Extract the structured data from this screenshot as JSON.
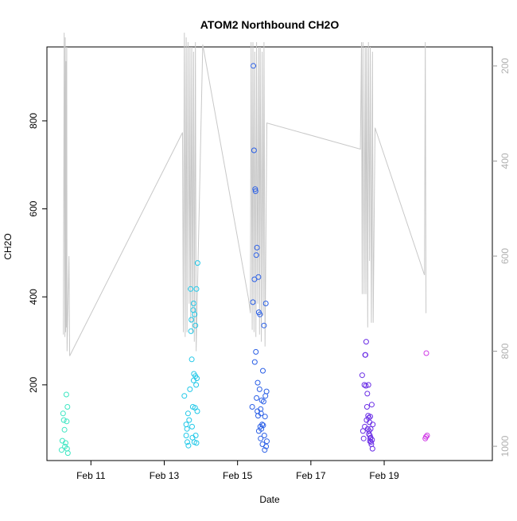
{
  "chart_data": {
    "type": "scatter",
    "title": "ATOM2 Northbound CH2O",
    "xlabel": "Date",
    "ylabel": "CH2O",
    "x_range": [
      9.8,
      21.95
    ],
    "y_range": [
      28,
      968
    ],
    "right_axis_range": [
      1030,
      160
    ],
    "x_ticks": [
      {
        "value": 11,
        "label": "Feb 11"
      },
      {
        "value": 13,
        "label": "Feb 13"
      },
      {
        "value": 15,
        "label": "Feb 15"
      },
      {
        "value": 17,
        "label": "Feb 17"
      },
      {
        "value": 19,
        "label": "Feb 19"
      }
    ],
    "y_ticks": [
      {
        "value": 200,
        "label": "200"
      },
      {
        "value": 400,
        "label": "400"
      },
      {
        "value": 600,
        "label": "600"
      },
      {
        "value": 800,
        "label": "800"
      }
    ],
    "right_ticks": [
      {
        "value": 200,
        "label": "200"
      },
      {
        "value": 400,
        "label": "400"
      },
      {
        "value": 600,
        "label": "600"
      },
      {
        "value": 800,
        "label": "800"
      },
      {
        "value": 1000,
        "label": "1000"
      }
    ],
    "grid": false,
    "legend": "none",
    "series": [
      {
        "color": "#3de6c2",
        "points": [
          [
            10.2,
            52
          ],
          [
            10.22,
            73
          ],
          [
            10.24,
            135
          ],
          [
            10.26,
            120
          ],
          [
            10.28,
            98
          ],
          [
            10.29,
            60
          ],
          [
            10.31,
            68
          ],
          [
            10.33,
            178
          ],
          [
            10.34,
            117
          ],
          [
            10.36,
            150
          ],
          [
            10.37,
            45
          ],
          [
            10.35,
            55
          ]
        ]
      },
      {
        "color": "#21c8e8",
        "points": [
          [
            13.55,
            175
          ],
          [
            13.6,
            110
          ],
          [
            13.6,
            85
          ],
          [
            13.62,
            100
          ],
          [
            13.63,
            70
          ],
          [
            13.65,
            135
          ],
          [
            13.66,
            62
          ],
          [
            13.68,
            120
          ],
          [
            13.7,
            190
          ],
          [
            13.72,
            418
          ],
          [
            13.73,
            322
          ],
          [
            13.74,
            348
          ],
          [
            13.75,
            258
          ],
          [
            13.76,
            105
          ],
          [
            13.77,
            80
          ],
          [
            13.78,
            150
          ],
          [
            13.79,
            370
          ],
          [
            13.8,
            385
          ],
          [
            13.8,
            210
          ],
          [
            13.81,
            225
          ],
          [
            13.82,
            70
          ],
          [
            13.83,
            360
          ],
          [
            13.84,
            148
          ],
          [
            13.85,
            220
          ],
          [
            13.86,
            85
          ],
          [
            13.87,
            200
          ],
          [
            13.88,
            68
          ],
          [
            13.88,
            418
          ],
          [
            13.89,
            215
          ],
          [
            13.9,
            140
          ],
          [
            13.91,
            477
          ],
          [
            13.85,
            335
          ]
        ]
      },
      {
        "color": "#2a5fe6",
        "points": [
          [
            15.4,
            150
          ],
          [
            15.42,
            388
          ],
          [
            15.43,
            925
          ],
          [
            15.45,
            733
          ],
          [
            15.46,
            440
          ],
          [
            15.47,
            252
          ],
          [
            15.48,
            645
          ],
          [
            15.49,
            640
          ],
          [
            15.5,
            275
          ],
          [
            15.51,
            495
          ],
          [
            15.52,
            170
          ],
          [
            15.53,
            512
          ],
          [
            15.54,
            140
          ],
          [
            15.55,
            205
          ],
          [
            15.56,
            130
          ],
          [
            15.57,
            445
          ],
          [
            15.58,
            365
          ],
          [
            15.6,
            190
          ],
          [
            15.61,
            360
          ],
          [
            15.62,
            105
          ],
          [
            15.63,
            145
          ],
          [
            15.64,
            135
          ],
          [
            15.65,
            100
          ],
          [
            15.66,
            165
          ],
          [
            15.67,
            110
          ],
          [
            15.68,
            65
          ],
          [
            15.69,
            232
          ],
          [
            15.7,
            108
          ],
          [
            15.71,
            162
          ],
          [
            15.72,
            335
          ],
          [
            15.73,
            85
          ],
          [
            15.74,
            52
          ],
          [
            15.75,
            128
          ],
          [
            15.76,
            175
          ],
          [
            15.77,
            385
          ],
          [
            15.78,
            60
          ],
          [
            15.79,
            185
          ],
          [
            15.8,
            72
          ],
          [
            15.58,
            95
          ],
          [
            15.63,
            78
          ]
        ]
      },
      {
        "color": "#6a2de6",
        "points": [
          [
            18.4,
            222
          ],
          [
            18.42,
            95
          ],
          [
            18.44,
            78
          ],
          [
            18.46,
            200
          ],
          [
            18.47,
            105
          ],
          [
            18.48,
            268
          ],
          [
            18.49,
            268
          ],
          [
            18.5,
            198
          ],
          [
            18.51,
            298
          ],
          [
            18.52,
            120
          ],
          [
            18.53,
            150
          ],
          [
            18.54,
            180
          ],
          [
            18.55,
            100
          ],
          [
            18.56,
            130
          ],
          [
            18.57,
            200
          ],
          [
            18.58,
            125
          ],
          [
            18.59,
            95
          ],
          [
            18.6,
            115
          ],
          [
            18.61,
            85
          ],
          [
            18.62,
            128
          ],
          [
            18.63,
            80
          ],
          [
            18.64,
            70
          ],
          [
            18.65,
            65
          ],
          [
            18.66,
            155
          ],
          [
            18.67,
            75
          ],
          [
            18.68,
            55
          ],
          [
            18.69,
            110
          ],
          [
            18.58,
            88
          ],
          [
            18.63,
            100
          ],
          [
            18.62,
            78
          ],
          [
            18.61,
            72
          ]
        ]
      },
      {
        "color": "#d03ae6",
        "points": [
          [
            20.15,
            272
          ],
          [
            20.12,
            78
          ],
          [
            20.17,
            85
          ],
          [
            20.14,
            82
          ]
        ]
      }
    ],
    "secondary_line": {
      "color": "#c8c8c8",
      "points": [
        [
          10.25,
          765
        ],
        [
          10.27,
          130
        ],
        [
          10.29,
          770
        ],
        [
          10.3,
          140
        ],
        [
          10.31,
          760
        ],
        [
          10.32,
          190
        ],
        [
          10.33,
          750
        ],
        [
          10.34,
          160
        ],
        [
          10.35,
          800
        ],
        [
          10.4,
          600
        ],
        [
          10.42,
          810
        ],
        [
          13.5,
          340
        ],
        [
          13.52,
          760
        ],
        [
          13.55,
          130
        ],
        [
          13.57,
          770
        ],
        [
          13.6,
          140
        ],
        [
          13.62,
          760
        ],
        [
          13.65,
          150
        ],
        [
          13.68,
          700
        ],
        [
          13.7,
          160
        ],
        [
          13.72,
          740
        ],
        [
          13.75,
          160
        ],
        [
          13.77,
          760
        ],
        [
          13.8,
          170
        ],
        [
          13.82,
          780
        ],
        [
          13.85,
          150
        ],
        [
          13.87,
          800
        ],
        [
          14.05,
          155
        ],
        [
          15.3,
          690
        ],
        [
          15.35,
          720
        ],
        [
          15.37,
          150
        ],
        [
          15.4,
          755
        ],
        [
          15.42,
          150
        ],
        [
          15.45,
          760
        ],
        [
          15.47,
          170
        ],
        [
          15.5,
          770
        ],
        [
          15.52,
          150
        ],
        [
          15.55,
          700
        ],
        [
          15.58,
          160
        ],
        [
          15.6,
          765
        ],
        [
          15.62,
          160
        ],
        [
          15.65,
          780
        ],
        [
          15.67,
          170
        ],
        [
          15.7,
          725
        ],
        [
          15.72,
          150
        ],
        [
          15.75,
          790
        ],
        [
          15.8,
          320
        ],
        [
          18.35,
          375
        ],
        [
          18.38,
          150
        ],
        [
          18.4,
          680
        ],
        [
          18.42,
          150
        ],
        [
          18.45,
          680
        ],
        [
          18.48,
          160
        ],
        [
          18.5,
          680
        ],
        [
          18.52,
          160
        ],
        [
          18.55,
          750
        ],
        [
          18.57,
          150
        ],
        [
          18.6,
          610
        ],
        [
          18.62,
          160
        ],
        [
          18.65,
          740
        ],
        [
          18.68,
          170
        ],
        [
          18.7,
          740
        ],
        [
          18.75,
          330
        ],
        [
          20.1,
          640
        ],
        [
          20.12,
          150
        ],
        [
          20.14,
          720
        ]
      ]
    }
  }
}
